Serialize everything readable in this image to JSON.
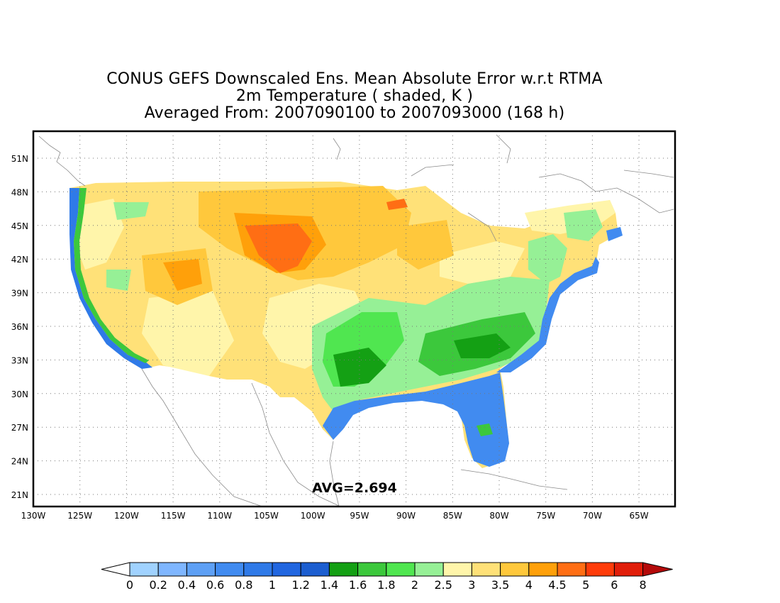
{
  "title": {
    "line1": "CONUS GEFS Downscaled Ens. Mean Absolute Error w.r.t RTMA",
    "line2": "2m Temperature ( shaded, K )",
    "line3": "Averaged From: 2007090100 to 2007093000 (168 h)"
  },
  "map": {
    "lon_labels": [
      "130W",
      "125W",
      "120W",
      "115W",
      "110W",
      "105W",
      "100W",
      "95W",
      "90W",
      "85W",
      "80W",
      "75W",
      "70W",
      "65W"
    ],
    "lat_labels": [
      "51N",
      "48N",
      "45N",
      "42N",
      "39N",
      "36N",
      "33N",
      "30N",
      "27N",
      "24N",
      "21N"
    ],
    "average_label": "AVG=2.694"
  },
  "colorbar": {
    "labels": [
      "0",
      "0.2",
      "0.4",
      "0.6",
      "0.8",
      "1",
      "1.2",
      "1.4",
      "1.6",
      "1.8",
      "2",
      "2.5",
      "3",
      "3.5",
      "4",
      "4.5",
      "5",
      "6",
      "8"
    ],
    "colors": [
      "#a0d2ff",
      "#7fb6ff",
      "#5ea0f5",
      "#418bf0",
      "#2f7ae8",
      "#2166e0",
      "#1c5ed0",
      "#14a014",
      "#3cc83c",
      "#50e650",
      "#96f096",
      "#fff5aa",
      "#ffe178",
      "#ffc83c",
      "#ffa00a",
      "#ff6e14",
      "#ff3c0a",
      "#e11e0a",
      "#b40a0a"
    ]
  }
}
